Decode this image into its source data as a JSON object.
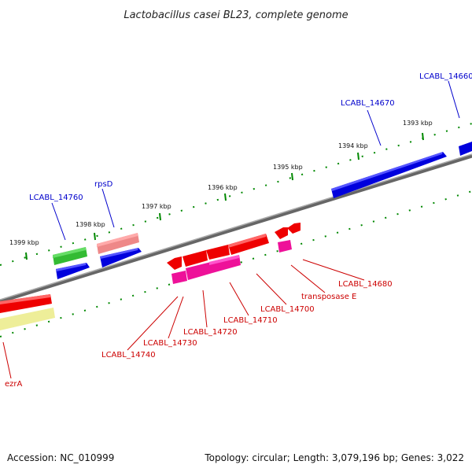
{
  "title": "Lactobacillus casei BL23, complete genome",
  "footer": {
    "accession": "Accession: NC_010999",
    "topology": "Topology: circular; Length: 3,079,196 bp; Genes: 3,022"
  },
  "ticks": [
    "1393 kbp",
    "1394 kbp",
    "1395 kbp",
    "1396 kbp",
    "1397 kbp",
    "1398 kbp",
    "1399 kbp"
  ],
  "gene_labels": {
    "lcabl_14660": "LCABL_14660",
    "lcabl_14670": "LCABL_14670",
    "lcabl_14760": "LCABL_14760",
    "rpsd": "rpsD",
    "lcabl_14680": "LCABL_14680",
    "transposase_e": "transposase E",
    "lcabl_14700": "LCABL_14700",
    "lcabl_14710": "LCABL_14710",
    "lcabl_14720": "LCABL_14720",
    "lcabl_14730": "LCABL_14730",
    "lcabl_14740": "LCABL_14740",
    "ezra": "ezrA"
  },
  "colors": {
    "cds_forward": "#0000dd",
    "cds_reverse": "#ee0000",
    "rrna": "#33bb33",
    "trna": "#ee8888",
    "pseudo": "#ee1199",
    "misc": "#eeee99",
    "backbone": "#777777",
    "tick_marks": "#008800"
  }
}
